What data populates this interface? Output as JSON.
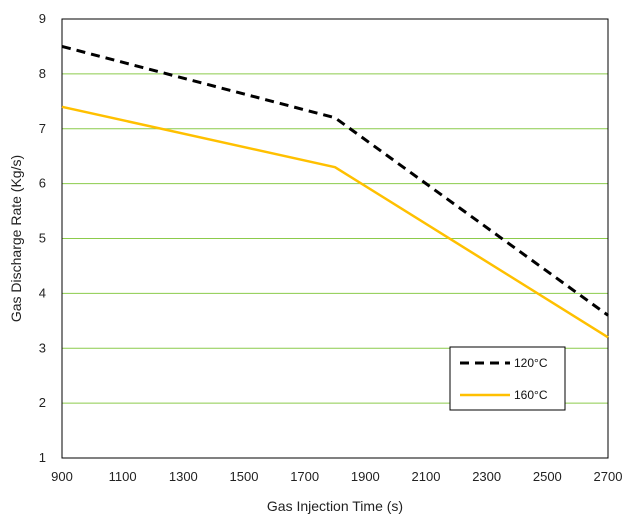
{
  "chart_data": {
    "type": "line",
    "title": "",
    "xlabel": "Gas Injection Time (s)",
    "ylabel": "Gas  Discharge Rate (Kg/s)",
    "xlim": [
      900,
      2700
    ],
    "ylim": [
      1,
      9
    ],
    "xticks": [
      900,
      1100,
      1300,
      1500,
      1700,
      1900,
      2100,
      2300,
      2500,
      2700
    ],
    "yticks": [
      1,
      2,
      3,
      4,
      5,
      6,
      7,
      8,
      9
    ],
    "grid": "horizontal",
    "legend_position": "bottom-right",
    "series": [
      {
        "name": "120°C",
        "color": "#000000",
        "style": "dashed",
        "x": [
          900,
          1800,
          2700
        ],
        "y": [
          8.5,
          7.2,
          3.6
        ]
      },
      {
        "name": "160°C",
        "color": "#FFC000",
        "style": "solid",
        "x": [
          900,
          1800,
          2700
        ],
        "y": [
          7.4,
          6.3,
          3.2
        ]
      }
    ],
    "colors": {
      "grid": "#8CCB4B",
      "axis": "#000000"
    }
  }
}
